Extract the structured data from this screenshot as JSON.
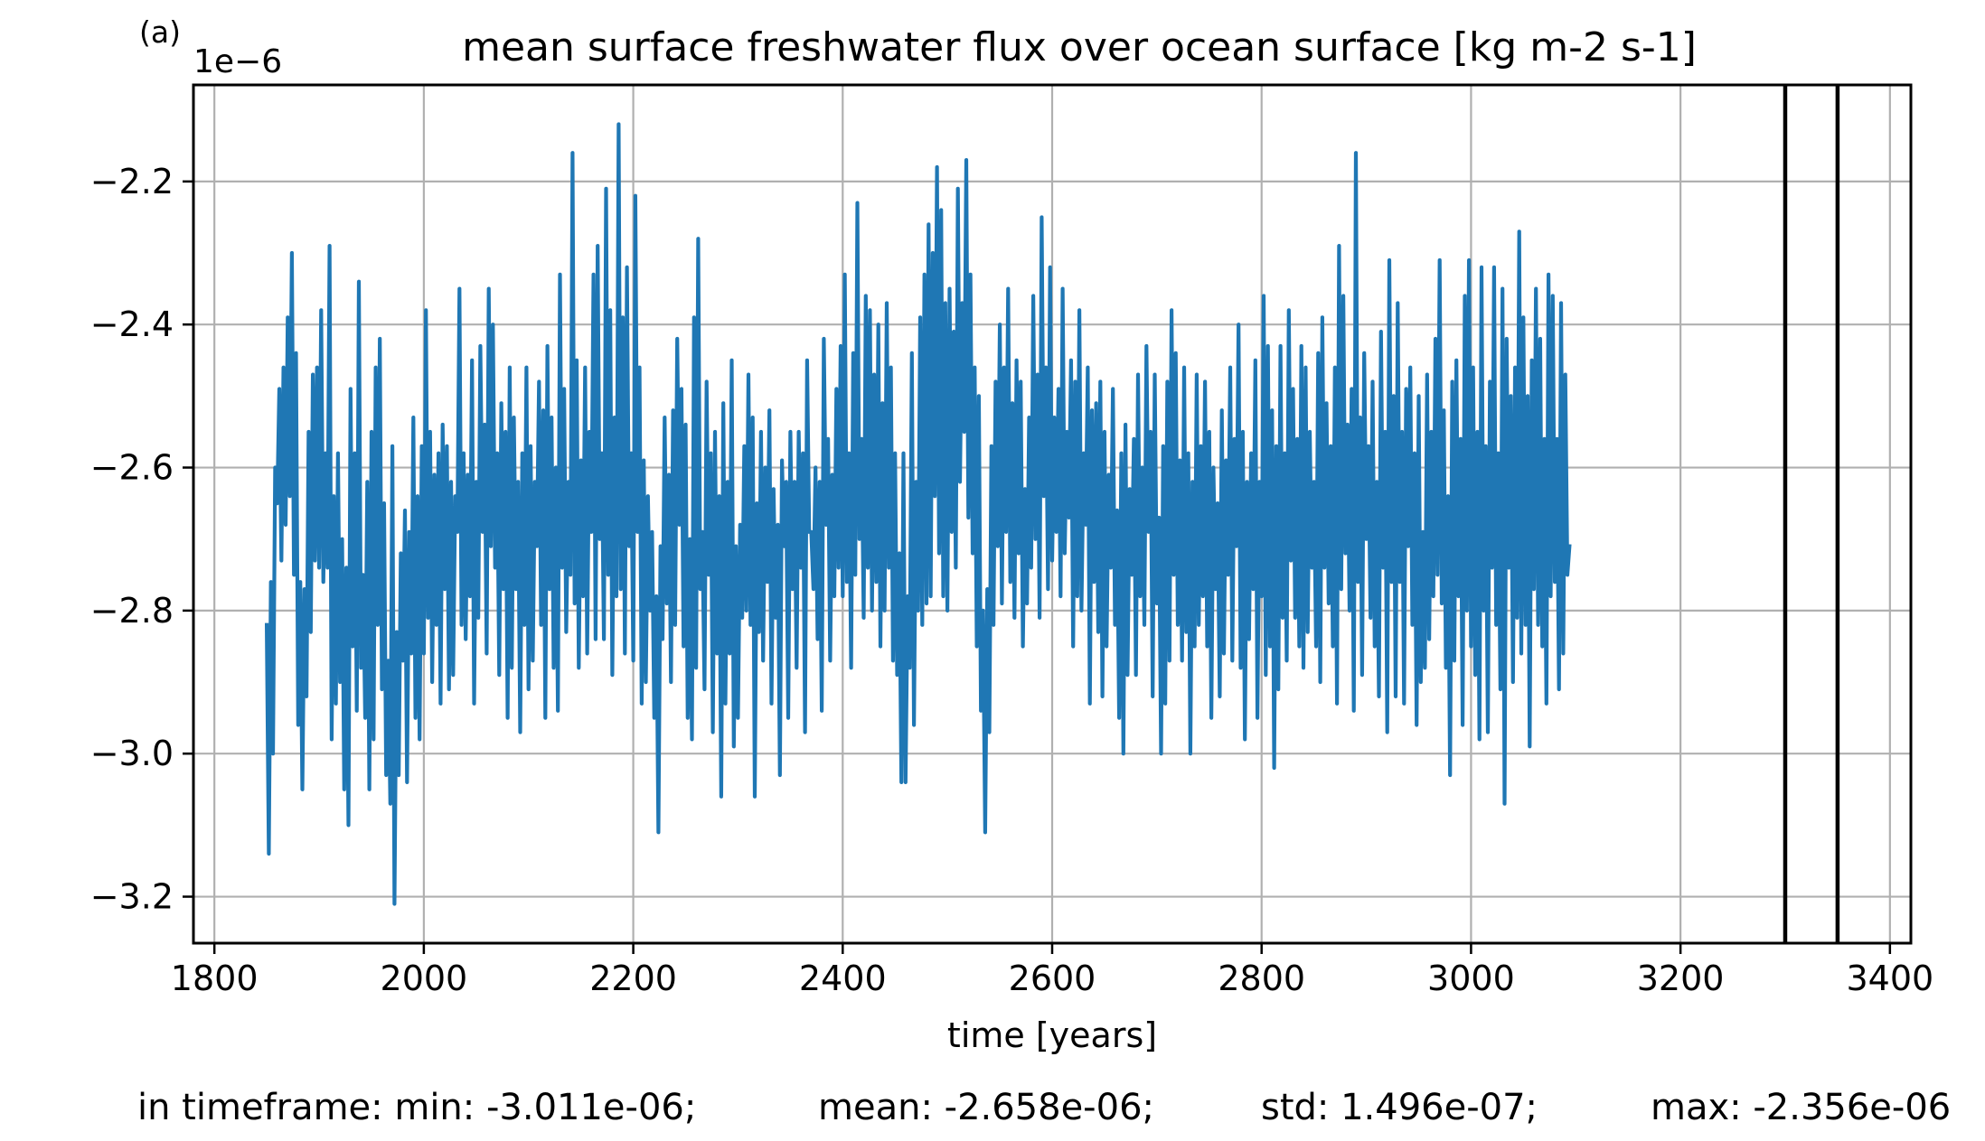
{
  "panel_label": "(a)",
  "stats_line": {
    "min": "in timeframe: min: -3.011e-06;",
    "mean": "mean: -2.658e-06;",
    "std": "std: 1.496e-07;",
    "max": "max: -2.356e-06"
  },
  "chart_data": {
    "type": "line",
    "title": "mean surface freshwater flux over ocean surface [kg m-2 s-1]",
    "xlabel": "time [years]",
    "ylabel": "",
    "y_offset_text": "1e−6",
    "y_scale": 1e-06,
    "xlim": [
      1780,
      3420
    ],
    "ylim": [
      -3.265,
      -2.065
    ],
    "xticks": [
      1800,
      2000,
      2200,
      2400,
      2600,
      2800,
      3000,
      3200,
      3400
    ],
    "yticks": [
      -3.2,
      -3.0,
      -2.8,
      -2.6,
      -2.4,
      -2.2
    ],
    "ytick_labels": [
      "−3.2",
      "−3.0",
      "−2.8",
      "−2.6",
      "−2.4",
      "−2.2"
    ],
    "grid": true,
    "line_color": "#1f77b4",
    "vertical_lines": [
      3300,
      3350
    ],
    "vertical_line_color": "#000000",
    "series": [
      {
        "x_start": 1850,
        "x_step": 2,
        "values": [
          -2.82,
          -3.14,
          -2.76,
          -3.0,
          -2.6,
          -2.65,
          -2.49,
          -2.73,
          -2.46,
          -2.68,
          -2.39,
          -2.64,
          -2.3,
          -2.75,
          -2.44,
          -2.96,
          -2.76,
          -3.05,
          -2.77,
          -2.92,
          -2.55,
          -2.83,
          -2.47,
          -2.73,
          -2.46,
          -2.74,
          -2.38,
          -2.76,
          -2.58,
          -2.74,
          -2.29,
          -2.98,
          -2.64,
          -2.93,
          -2.58,
          -2.9,
          -2.7,
          -3.05,
          -2.74,
          -3.1,
          -2.49,
          -2.85,
          -2.58,
          -2.94,
          -2.34,
          -2.88,
          -2.75,
          -2.95,
          -2.62,
          -3.05,
          -2.55,
          -2.98,
          -2.46,
          -2.82,
          -2.42,
          -2.91,
          -2.65,
          -3.03,
          -2.87,
          -3.07,
          -2.57,
          -3.21,
          -2.83,
          -3.03,
          -2.72,
          -2.87,
          -2.66,
          -3.04,
          -2.69,
          -2.86,
          -2.53,
          -2.95,
          -2.64,
          -2.98,
          -2.57,
          -2.86,
          -2.38,
          -2.81,
          -2.55,
          -2.9,
          -2.61,
          -2.82,
          -2.58,
          -2.93,
          -2.54,
          -2.77,
          -2.57,
          -2.91,
          -2.62,
          -2.89,
          -2.64,
          -2.69,
          -2.35,
          -2.82,
          -2.58,
          -2.84,
          -2.61,
          -2.78,
          -2.45,
          -2.93,
          -2.62,
          -2.81,
          -2.43,
          -2.69,
          -2.54,
          -2.86,
          -2.35,
          -2.71,
          -2.4,
          -2.74,
          -2.58,
          -2.89,
          -2.51,
          -2.77,
          -2.55,
          -2.95,
          -2.46,
          -2.88,
          -2.53,
          -2.77,
          -2.62,
          -2.97,
          -2.58,
          -2.82,
          -2.46,
          -2.91,
          -2.57,
          -2.87,
          -2.62,
          -2.71,
          -2.48,
          -2.82,
          -2.52,
          -2.95,
          -2.43,
          -2.77,
          -2.53,
          -2.88,
          -2.6,
          -2.94,
          -2.33,
          -2.74,
          -2.49,
          -2.83,
          -2.62,
          -2.75,
          -2.16,
          -2.79,
          -2.45,
          -2.88,
          -2.59,
          -2.78,
          -2.46,
          -2.86,
          -2.55,
          -2.69,
          -2.33,
          -2.84,
          -2.29,
          -2.7,
          -2.58,
          -2.84,
          -2.21,
          -2.75,
          -2.38,
          -2.89,
          -2.53,
          -2.78,
          -2.12,
          -2.77,
          -2.39,
          -2.86,
          -2.32,
          -2.71,
          -2.58,
          -2.87,
          -2.22,
          -2.69,
          -2.46,
          -2.93,
          -2.59,
          -2.9,
          -2.64,
          -2.8,
          -2.69,
          -2.95,
          -2.78,
          -3.11,
          -2.71,
          -2.84,
          -2.53,
          -2.79,
          -2.61,
          -2.9,
          -2.52,
          -2.82,
          -2.42,
          -2.68,
          -2.49,
          -2.85,
          -2.54,
          -2.95,
          -2.7,
          -2.98,
          -2.39,
          -2.88,
          -2.28,
          -2.77,
          -2.69,
          -2.91,
          -2.48,
          -2.75,
          -2.58,
          -2.97,
          -2.55,
          -2.86,
          -2.64,
          -3.06,
          -2.51,
          -2.93,
          -2.62,
          -2.86,
          -2.45,
          -2.99,
          -2.71,
          -2.95,
          -2.68,
          -2.81,
          -2.57,
          -2.8,
          -2.47,
          -2.82,
          -2.53,
          -3.06,
          -2.65,
          -2.83,
          -2.55,
          -2.87,
          -2.6,
          -2.76,
          -2.52,
          -2.93,
          -2.63,
          -2.81,
          -2.68,
          -3.03,
          -2.59,
          -2.71,
          -2.62,
          -2.95,
          -2.55,
          -2.77,
          -2.62,
          -2.88,
          -2.55,
          -2.74,
          -2.58,
          -2.97,
          -2.45,
          -2.69,
          -2.69,
          -2.77,
          -2.6,
          -2.84,
          -2.62,
          -2.94,
          -2.42,
          -2.68,
          -2.56,
          -2.87,
          -2.61,
          -2.78,
          -2.49,
          -2.74,
          -2.43,
          -2.78,
          -2.33,
          -2.76,
          -2.58,
          -2.88,
          -2.44,
          -2.75,
          -2.23,
          -2.7,
          -2.56,
          -2.81,
          -2.36,
          -2.74,
          -2.38,
          -2.8,
          -2.47,
          -2.76,
          -2.4,
          -2.85,
          -2.51,
          -2.8,
          -2.37,
          -2.74,
          -2.46,
          -2.87,
          -2.58,
          -2.89,
          -2.72,
          -3.04,
          -2.58,
          -3.04,
          -2.78,
          -2.88,
          -2.44,
          -2.96,
          -2.62,
          -2.8,
          -2.39,
          -2.82,
          -2.33,
          -2.79,
          -2.26,
          -2.78,
          -2.3,
          -2.64,
          -2.18,
          -2.72,
          -2.24,
          -2.78,
          -2.37,
          -2.8,
          -2.35,
          -2.69,
          -2.41,
          -2.74,
          -2.21,
          -2.62,
          -2.37,
          -2.55,
          -2.17,
          -2.67,
          -2.33,
          -2.72,
          -2.46,
          -2.85,
          -2.5,
          -2.94,
          -2.8,
          -3.11,
          -2.77,
          -2.97,
          -2.57,
          -2.82,
          -2.48,
          -2.71,
          -2.4,
          -2.79,
          -2.46,
          -2.69,
          -2.35,
          -2.76,
          -2.51,
          -2.81,
          -2.45,
          -2.72,
          -2.48,
          -2.85,
          -2.63,
          -2.79,
          -2.53,
          -2.74,
          -2.36,
          -2.7,
          -2.47,
          -2.81,
          -2.25,
          -2.64,
          -2.46,
          -2.77,
          -2.32,
          -2.73,
          -2.53,
          -2.69,
          -2.49,
          -2.78,
          -2.35,
          -2.72,
          -2.55,
          -2.67,
          -2.45,
          -2.85,
          -2.48,
          -2.78,
          -2.38,
          -2.8,
          -2.58,
          -2.68,
          -2.46,
          -2.93,
          -2.52,
          -2.76,
          -2.51,
          -2.83,
          -2.48,
          -2.92,
          -2.55,
          -2.85,
          -2.61,
          -2.74,
          -2.49,
          -2.82,
          -2.66,
          -2.95,
          -2.58,
          -3.0,
          -2.54,
          -2.89,
          -2.63,
          -2.75,
          -2.56,
          -2.89,
          -2.47,
          -2.78,
          -2.6,
          -2.82,
          -2.43,
          -2.69,
          -2.55,
          -2.92,
          -2.47,
          -2.79,
          -2.67,
          -3.0,
          -2.57,
          -2.93,
          -2.48,
          -2.87,
          -2.38,
          -2.75,
          -2.44,
          -2.82,
          -2.59,
          -2.87,
          -2.46,
          -2.83,
          -2.58,
          -3.0,
          -2.62,
          -2.85,
          -2.47,
          -2.82,
          -2.57,
          -2.78,
          -2.48,
          -2.85,
          -2.55,
          -2.95,
          -2.6,
          -2.77,
          -2.65,
          -2.92,
          -2.52,
          -2.86,
          -2.59,
          -2.75,
          -2.46,
          -2.87,
          -2.56,
          -2.71,
          -2.4,
          -2.88,
          -2.55,
          -2.98,
          -2.62,
          -2.84,
          -2.58,
          -2.77,
          -2.45,
          -2.95,
          -2.62,
          -2.78,
          -2.36,
          -2.89,
          -2.43,
          -2.85,
          -2.52,
          -3.02,
          -2.57,
          -2.91,
          -2.43,
          -2.81,
          -2.58,
          -2.87,
          -2.38,
          -2.73,
          -2.49,
          -2.81,
          -2.56,
          -2.85,
          -2.43,
          -2.88,
          -2.46,
          -2.83,
          -2.55,
          -2.74,
          -2.62,
          -2.85,
          -2.44,
          -2.9,
          -2.39,
          -2.74,
          -2.51,
          -2.79,
          -2.57,
          -2.85,
          -2.46,
          -2.93,
          -2.29,
          -2.77,
          -2.36,
          -2.72,
          -2.54,
          -2.8,
          -2.49,
          -2.94,
          -2.16,
          -2.76,
          -2.53,
          -2.89,
          -2.44,
          -2.7,
          -2.57,
          -2.81,
          -2.48,
          -2.85,
          -2.62,
          -2.92,
          -2.41,
          -2.74,
          -2.55,
          -2.97,
          -2.31,
          -2.76,
          -2.5,
          -2.92,
          -2.37,
          -2.76,
          -2.55,
          -2.93,
          -2.49,
          -2.71,
          -2.46,
          -2.82,
          -2.58,
          -2.96,
          -2.5,
          -2.9,
          -2.69,
          -2.88,
          -2.47,
          -2.84,
          -2.55,
          -2.78,
          -2.42,
          -2.75,
          -2.31,
          -2.79,
          -2.52,
          -2.88,
          -2.64,
          -3.03,
          -2.48,
          -2.87,
          -2.45,
          -2.78,
          -2.56,
          -2.96,
          -2.36,
          -2.8,
          -2.31,
          -2.85,
          -2.46,
          -2.89,
          -2.55,
          -2.98,
          -2.32,
          -2.8,
          -2.57,
          -2.97,
          -2.48,
          -2.74,
          -2.32,
          -2.82,
          -2.58,
          -2.91,
          -2.35,
          -3.07,
          -2.42,
          -2.74,
          -2.5,
          -2.9,
          -2.46,
          -2.81,
          -2.27,
          -2.86,
          -2.39,
          -2.82,
          -2.5,
          -2.99,
          -2.45,
          -2.77,
          -2.35,
          -2.82,
          -2.42,
          -2.85,
          -2.56,
          -2.93,
          -2.33,
          -2.78,
          -2.36,
          -2.76,
          -2.56,
          -2.91,
          -2.37,
          -2.86,
          -2.47,
          -2.75,
          -2.71
        ]
      }
    ]
  }
}
